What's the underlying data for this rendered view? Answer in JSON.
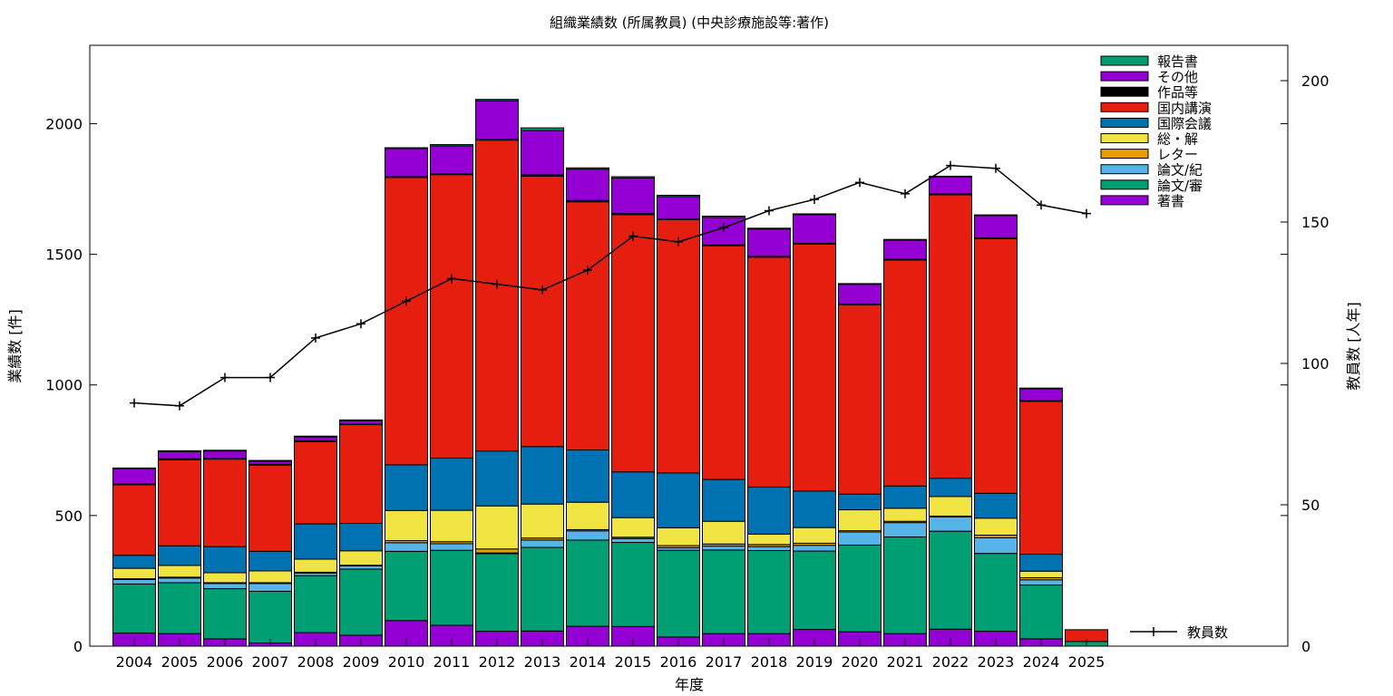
{
  "chart_data": {
    "type": "bar",
    "stacked": true,
    "title": "組織業績数 (所属教員) (中央診療施設等:著作)",
    "xlabel": "年度",
    "ylabel": "業績数 [件]",
    "y2label": "教員数 [人年]",
    "ylim": [
      0,
      2300
    ],
    "y2lim": [
      0,
      212.5
    ],
    "yticks": [
      0,
      500,
      1000,
      1500,
      2000
    ],
    "y2ticks": [
      0,
      50,
      100,
      150,
      200
    ],
    "grid": false,
    "legend_position": "top-right",
    "categories": [
      "2004",
      "2005",
      "2006",
      "2007",
      "2008",
      "2009",
      "2010",
      "2011",
      "2012",
      "2013",
      "2014",
      "2015",
      "2016",
      "2017",
      "2018",
      "2019",
      "2020",
      "2021",
      "2022",
      "2023",
      "2024",
      "2025"
    ],
    "series": [
      {
        "name": "著書",
        "color": "#9400d3",
        "values": [
          50,
          48,
          28,
          12,
          52,
          42,
          98,
          80,
          57,
          58,
          76,
          75,
          35,
          48,
          48,
          64,
          55,
          48,
          65,
          57,
          28,
          0
        ]
      },
      {
        "name": "論文/審",
        "color": "#009e73",
        "values": [
          188,
          195,
          192,
          198,
          218,
          253,
          265,
          287,
          297,
          320,
          330,
          322,
          332,
          320,
          318,
          300,
          332,
          370,
          375,
          298,
          206,
          18
        ]
      },
      {
        "name": "論文/紀",
        "color": "#56b4e9",
        "values": [
          17,
          18,
          20,
          30,
          10,
          12,
          33,
          25,
          3,
          28,
          35,
          15,
          10,
          15,
          15,
          22,
          50,
          55,
          55,
          60,
          20,
          0
        ]
      },
      {
        "name": "レター",
        "color": "#e69f00",
        "values": [
          3,
          3,
          3,
          3,
          3,
          3,
          8,
          8,
          15,
          8,
          5,
          5,
          8,
          8,
          8,
          8,
          5,
          5,
          3,
          10,
          8,
          0
        ]
      },
      {
        "name": "総・解",
        "color": "#f0e442",
        "values": [
          40,
          45,
          38,
          45,
          50,
          55,
          115,
          120,
          165,
          130,
          105,
          75,
          68,
          87,
          40,
          60,
          80,
          50,
          75,
          65,
          25,
          0
        ]
      },
      {
        "name": "国際会議",
        "color": "#0072b2",
        "values": [
          50,
          75,
          100,
          75,
          135,
          105,
          175,
          200,
          210,
          220,
          200,
          175,
          210,
          160,
          180,
          140,
          60,
          85,
          70,
          95,
          65,
          0
        ]
      },
      {
        "name": "国内講演",
        "color": "#e51e10",
        "values": [
          270,
          330,
          335,
          330,
          315,
          378,
          1100,
          1085,
          1190,
          1035,
          950,
          985,
          970,
          895,
          880,
          945,
          725,
          865,
          1085,
          975,
          585,
          45
        ],
        "ylabel_series": "国内講演"
      },
      {
        "name": "作品等",
        "color": "#000000",
        "values": [
          3,
          3,
          3,
          3,
          3,
          3,
          3,
          3,
          3,
          5,
          5,
          5,
          3,
          3,
          3,
          3,
          3,
          3,
          3,
          3,
          3,
          0
        ]
      },
      {
        "name": "その他",
        "color": "#9400d3",
        "values": [
          58,
          28,
          28,
          12,
          15,
          12,
          108,
          107,
          148,
          170,
          120,
          135,
          85,
          105,
          105,
          110,
          75,
          73,
          65,
          85,
          45,
          0
        ]
      },
      {
        "name": "報告書",
        "color": "#009e73",
        "values": [
          3,
          3,
          3,
          3,
          3,
          3,
          3,
          5,
          5,
          10,
          5,
          5,
          5,
          5,
          3,
          3,
          3,
          3,
          3,
          3,
          3,
          0
        ]
      }
    ],
    "line": {
      "name": "教員数",
      "axis": "y2",
      "color": "#000000",
      "x": [
        "2004",
        "2005",
        "2006",
        "2007",
        "2008",
        "2009",
        "2010",
        "2011",
        "2012",
        "2013",
        "2014",
        "2015",
        "2016",
        "2017",
        "2018",
        "2019",
        "2020",
        "2021",
        "2022",
        "2023",
        "2024",
        "2025"
      ],
      "values": [
        86,
        85,
        95,
        95,
        109,
        114,
        122,
        130,
        128,
        126,
        133,
        145,
        143,
        148,
        154,
        158,
        164,
        160,
        170,
        169,
        156,
        153
      ]
    }
  }
}
